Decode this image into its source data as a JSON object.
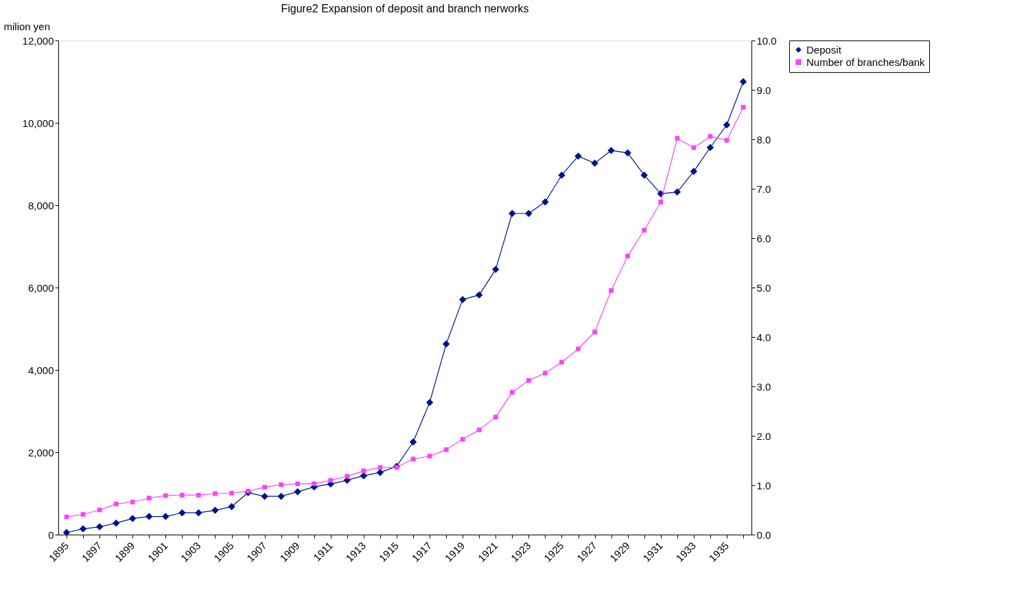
{
  "chart_data": {
    "type": "line",
    "title": "Figure2 Expansion of deposit and branch nerworks",
    "ylabel": "milion yen",
    "categories": [
      "1895",
      null,
      "1897",
      null,
      "1899",
      null,
      "1901",
      null,
      "1903",
      null,
      "1905",
      null,
      "1907",
      null,
      "1909",
      null,
      "1911",
      null,
      "1913",
      null,
      "1915",
      null,
      "1917",
      null,
      "1919",
      null,
      "1921",
      null,
      "1923",
      null,
      "1925",
      null,
      "1927",
      null,
      "1929",
      null,
      "1931",
      null,
      "1933",
      null,
      "1935",
      null
    ],
    "series": [
      {
        "name": "Deposit",
        "color": "#00138c",
        "marker": "diamond",
        "values": [
          50,
          140,
          190,
          280,
          390,
          440,
          440,
          530,
          530,
          590,
          680,
          1020,
          930,
          930,
          1040,
          1160,
          1230,
          1320,
          1430,
          1510,
          1660,
          2250,
          3210,
          4630,
          5710,
          5820,
          6440,
          7800,
          7800,
          8080,
          8730,
          9190,
          9020,
          9330,
          9270,
          8730,
          8280,
          8320,
          8820,
          9400,
          9950,
          11000
        ]
      },
      {
        "name": "Number of branches/bank",
        "color": "#ff40ff",
        "marker": "square",
        "axis": "y2",
        "values": [
          0.36,
          0.41,
          0.5,
          0.62,
          0.66,
          0.74,
          0.79,
          0.8,
          0.8,
          0.83,
          0.84,
          0.88,
          0.96,
          1.01,
          1.03,
          1.03,
          1.1,
          1.18,
          1.29,
          1.36,
          1.36,
          1.53,
          1.59,
          1.72,
          1.93,
          2.12,
          2.38,
          2.88,
          3.12,
          3.27,
          3.49,
          3.76,
          4.1,
          4.94,
          5.64,
          6.16,
          6.73,
          8.02,
          7.83,
          8.06,
          7.98,
          8.65
        ]
      }
    ],
    "ylim": [
      0,
      12000
    ],
    "yticks": [
      0,
      {
        "value": 2000,
        "label": "2,000"
      },
      {
        "value": 4000,
        "label": "4,000"
      },
      {
        "value": 6000,
        "label": "6,000"
      },
      {
        "value": 8000,
        "label": "8,000"
      },
      {
        "value": 10000,
        "label": "10,000"
      },
      {
        "value": 12000,
        "label": "12,000"
      }
    ],
    "y2lim": [
      0,
      10
    ],
    "y2ticks": [
      {
        "value": 0,
        "label": "0.0"
      },
      {
        "value": 1,
        "label": "1.0"
      },
      {
        "value": 2,
        "label": "2.0"
      },
      {
        "value": 3,
        "label": "3.0"
      },
      {
        "value": 4,
        "label": "4.0"
      },
      {
        "value": 5,
        "label": "5.0"
      },
      {
        "value": 6,
        "label": "6.0"
      },
      {
        "value": 7,
        "label": "7.0"
      },
      {
        "value": 8,
        "label": "8.0"
      },
      {
        "value": 9,
        "label": "9.0"
      },
      {
        "value": 10,
        "label": "10.0"
      }
    ],
    "grid": false,
    "legend": "right",
    "line_style": "solid"
  }
}
